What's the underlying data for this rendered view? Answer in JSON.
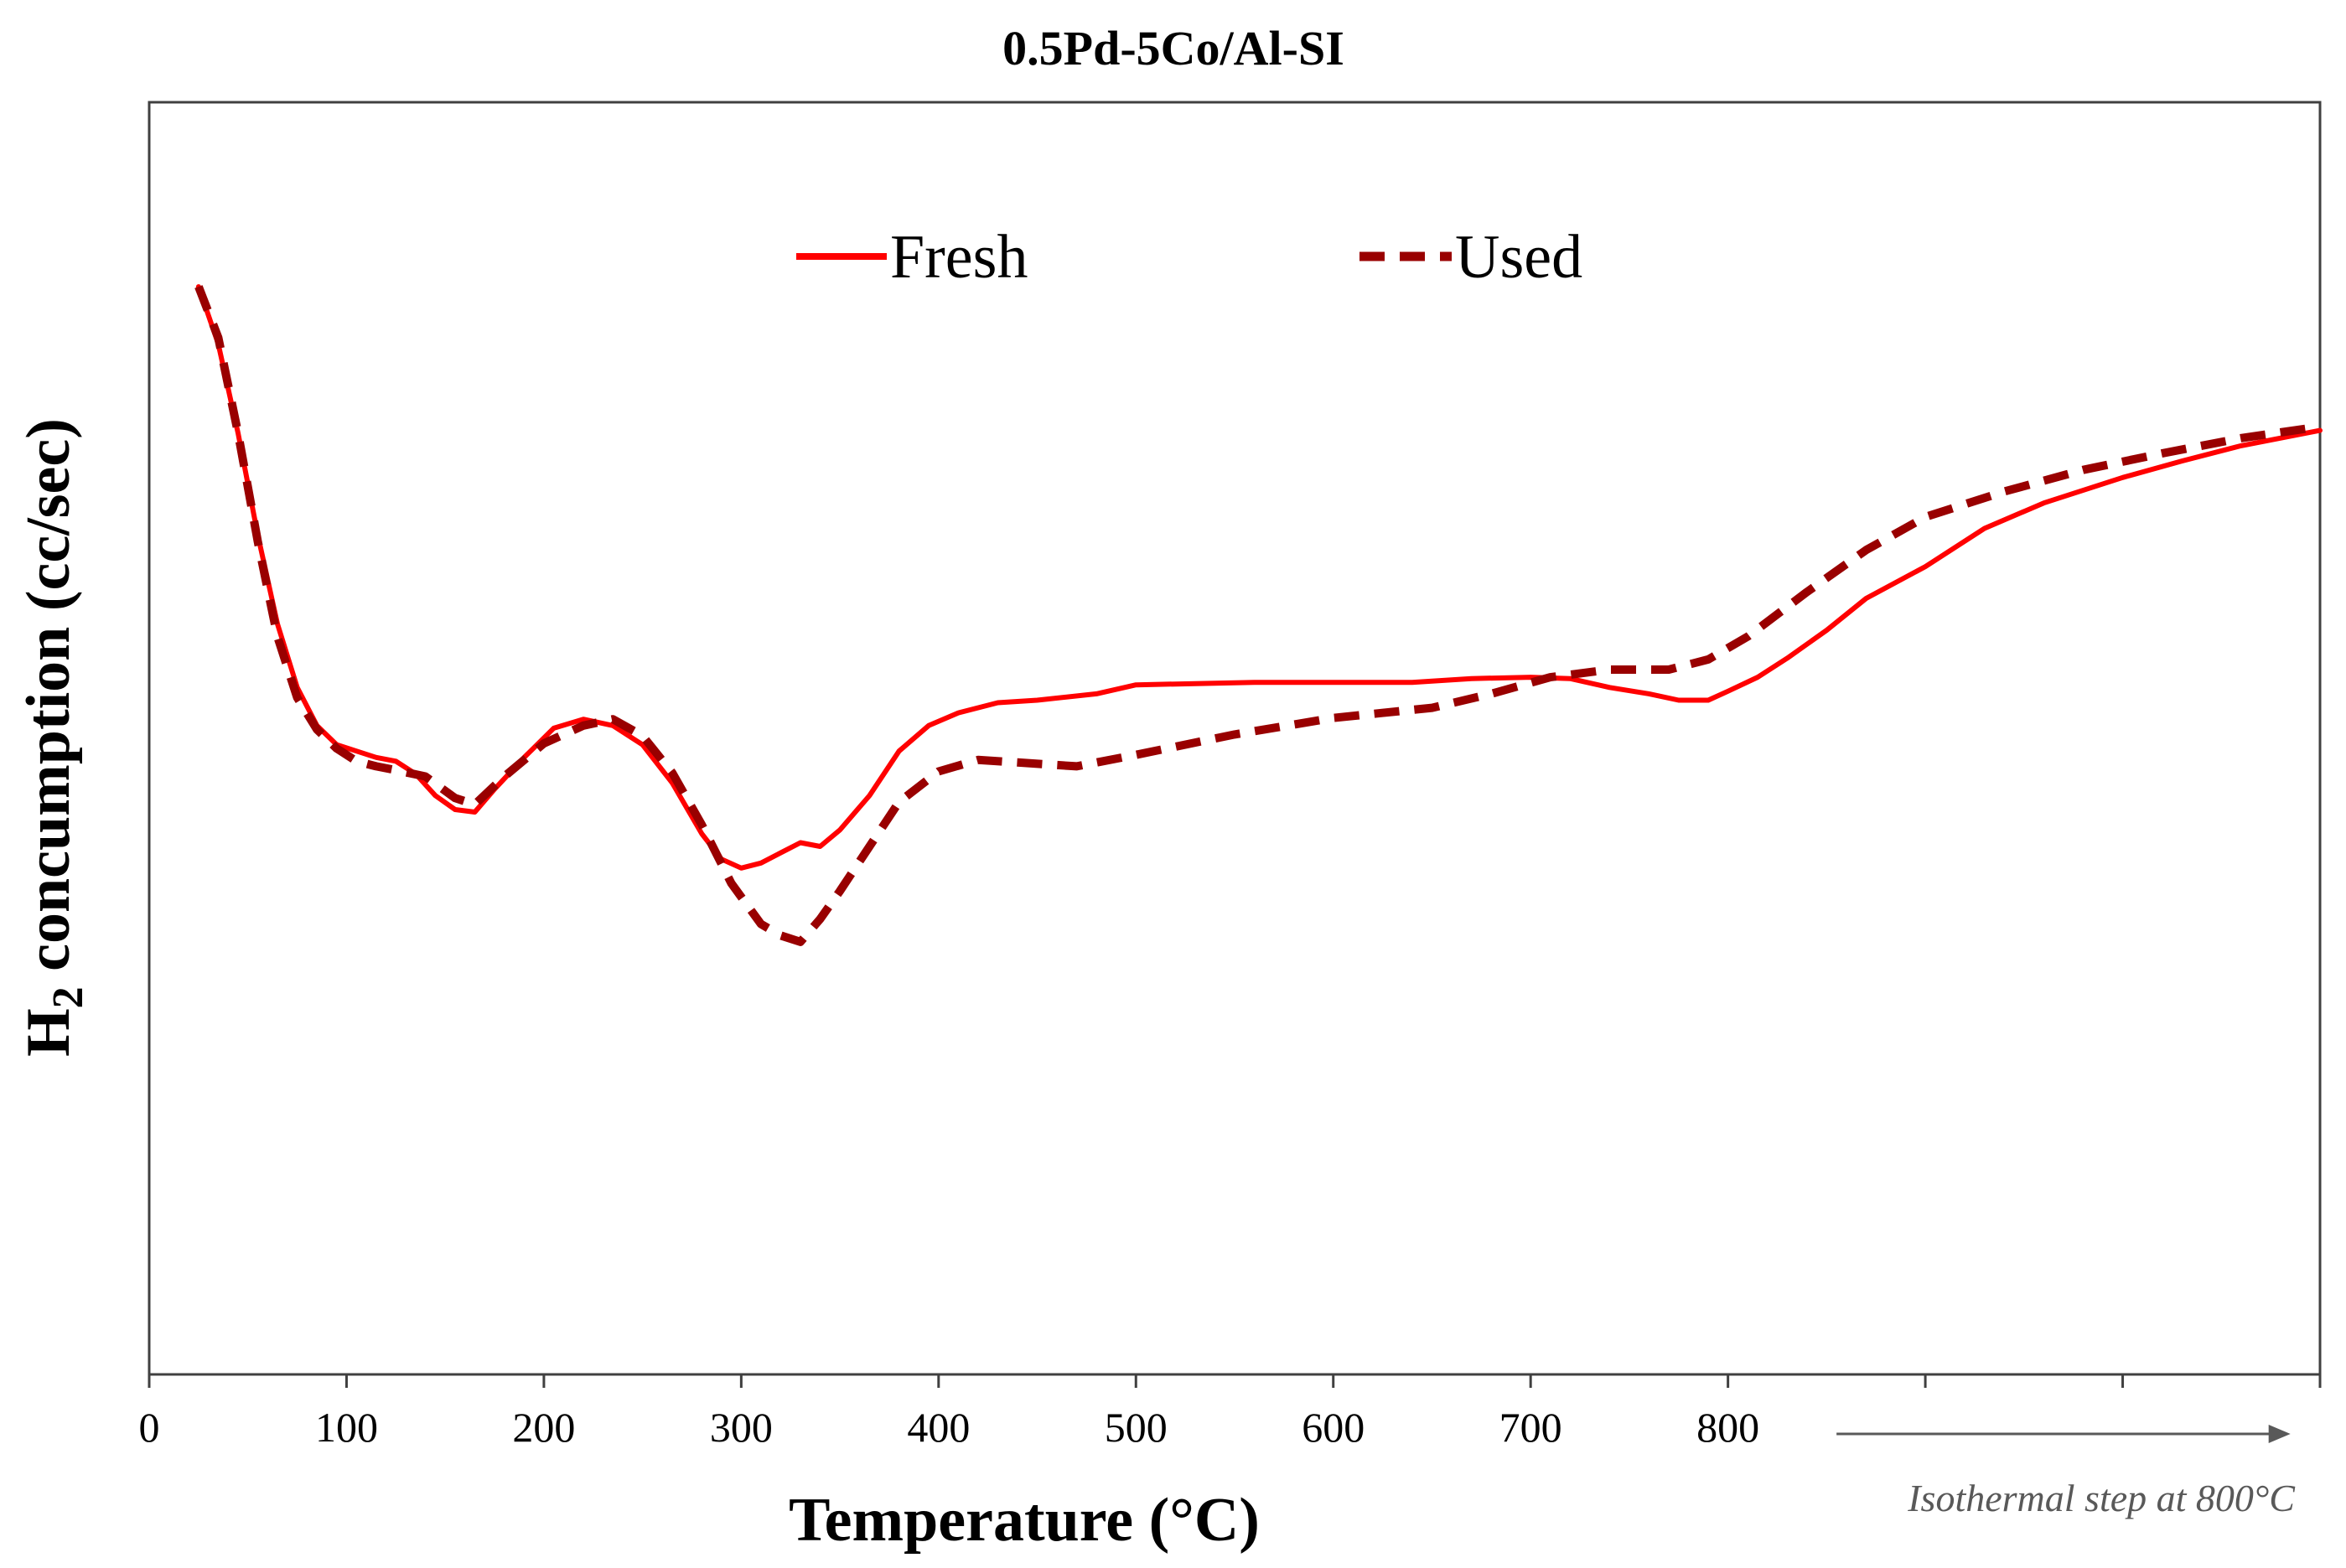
{
  "chart_data": {
    "type": "line",
    "title": "0.5Pd-5Co/Al-SI",
    "xlabel": "Temperature (°C)",
    "ylabel": {
      "pre": "H",
      "sub": "2",
      "post": " concumption (cc/sec)"
    },
    "xlim": [
      0,
      1100
    ],
    "ylim": [
      0,
      100
    ],
    "x_ticks": [
      0,
      100,
      200,
      300,
      400,
      500,
      600,
      700,
      800,
      900,
      1000,
      1100
    ],
    "x_tick_labels": [
      "0",
      "100",
      "200",
      "300",
      "400",
      "500",
      "600",
      "700",
      "800"
    ],
    "y_ticks_shown": false,
    "grid": false,
    "legend": {
      "placement": "top-center"
    },
    "annotation": {
      "text": "Isothermal step at 800°C",
      "arrow_from_x": 855,
      "arrow_to_x": 1085
    },
    "series": [
      {
        "name": "Fresh",
        "style": "solid",
        "color": "#ff0000",
        "x": [
          25,
          35,
          45,
          55,
          65,
          75,
          85,
          95,
          105,
          115,
          125,
          135,
          145,
          155,
          165,
          175,
          190,
          205,
          220,
          235,
          250,
          265,
          280,
          290,
          300,
          310,
          320,
          330,
          340,
          350,
          365,
          380,
          395,
          410,
          430,
          450,
          480,
          500,
          530,
          560,
          600,
          640,
          670,
          700,
          720,
          740,
          760,
          775,
          790,
          800,
          815,
          830,
          850,
          870,
          900,
          930,
          960,
          1000,
          1030,
          1060,
          1100
        ],
        "y": [
          85.5,
          81,
          74,
          66,
          59,
          54,
          51,
          49.5,
          49,
          48.5,
          48.2,
          47.2,
          45.5,
          44.4,
          44.2,
          46,
          48.5,
          50.8,
          51.5,
          51,
          49.5,
          46.5,
          42.5,
          40.5,
          39.8,
          40.2,
          41,
          41.8,
          41.5,
          42.8,
          45.5,
          49,
          51,
          52,
          52.8,
          53,
          53.5,
          54.2,
          54.3,
          54.4,
          54.4,
          54.4,
          54.7,
          54.8,
          54.7,
          54,
          53.5,
          53,
          53,
          53.7,
          54.8,
          56.3,
          58.5,
          61,
          63.5,
          66.5,
          68.5,
          70.5,
          71.8,
          73,
          74.2
        ]
      },
      {
        "name": "Used",
        "style": "dashed",
        "color": "#990000",
        "x": [
          25,
          35,
          45,
          55,
          65,
          75,
          85,
          95,
          105,
          115,
          125,
          140,
          155,
          165,
          180,
          200,
          220,
          235,
          250,
          265,
          280,
          295,
          310,
          320,
          330,
          340,
          350,
          365,
          380,
          400,
          420,
          440,
          470,
          500,
          550,
          600,
          650,
          680,
          710,
          740,
          770,
          790,
          810,
          840,
          870,
          900,
          940,
          980,
          1020,
          1060,
          1100
        ],
        "y": [
          85.5,
          81.5,
          74,
          65.5,
          58,
          53.2,
          50.7,
          49.2,
          48.2,
          47.8,
          47.5,
          47,
          45.3,
          44.8,
          47,
          49.6,
          51,
          51.5,
          50.2,
          47.3,
          43.2,
          38.6,
          35.4,
          34.5,
          34,
          35.8,
          38,
          41.5,
          45,
          47.4,
          48.3,
          48.1,
          47.8,
          48.7,
          50.3,
          51.6,
          52.4,
          53.5,
          54.8,
          55.4,
          55.4,
          56.2,
          58,
          61.5,
          64.8,
          67.4,
          69.4,
          71.1,
          72.4,
          73.6,
          74.5
        ]
      }
    ]
  }
}
